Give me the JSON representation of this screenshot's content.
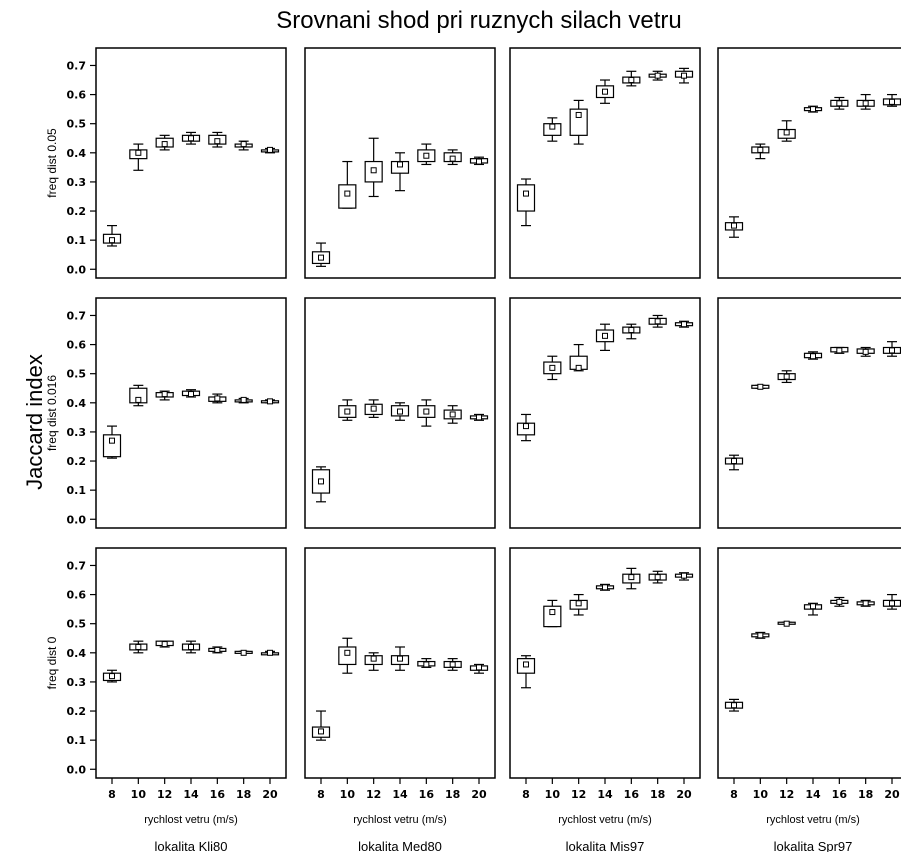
{
  "chart_data": {
    "type": "box",
    "title": "Srovnani shod pri ruznych silach vetru",
    "ylabel": "Jaccard index",
    "row_labels": [
      "freq dist 0.05",
      "freq dist 0.016",
      "freq dist 0"
    ],
    "column_xlabel": "rychlost vetru (m/s)",
    "column_labels": [
      "lokalita Kli80",
      "lokalita Med80",
      "lokalita Mis97",
      "lokalita Spr97"
    ],
    "categories": [
      "8",
      "10",
      "12",
      "14",
      "16",
      "18",
      "20"
    ],
    "y_ticks": [
      "0.0",
      "0.1",
      "0.2",
      "0.3",
      "0.4",
      "0.5",
      "0.6",
      "0.7"
    ],
    "ylim": [
      -0.03,
      0.76
    ],
    "panels": [
      [
        [
          [
            0.08,
            0.09,
            0.1,
            0.12,
            0.15
          ],
          [
            0.34,
            0.38,
            0.4,
            0.41,
            0.43
          ],
          [
            0.41,
            0.42,
            0.43,
            0.45,
            0.46
          ],
          [
            0.43,
            0.44,
            0.45,
            0.46,
            0.47
          ],
          [
            0.42,
            0.43,
            0.44,
            0.46,
            0.47
          ],
          [
            0.41,
            0.42,
            0.43,
            0.43,
            0.44
          ],
          [
            0.4,
            0.405,
            0.41,
            0.41,
            0.415
          ]
        ],
        [
          [
            0.01,
            0.02,
            0.04,
            0.06,
            0.09
          ],
          [
            0.21,
            0.21,
            0.26,
            0.29,
            0.37
          ],
          [
            0.25,
            0.3,
            0.34,
            0.37,
            0.45
          ],
          [
            0.27,
            0.33,
            0.36,
            0.37,
            0.4
          ],
          [
            0.36,
            0.37,
            0.39,
            0.41,
            0.43
          ],
          [
            0.36,
            0.37,
            0.38,
            0.4,
            0.41
          ],
          [
            0.36,
            0.365,
            0.37,
            0.38,
            0.385
          ]
        ],
        [
          [
            0.15,
            0.2,
            0.26,
            0.29,
            0.31
          ],
          [
            0.44,
            0.46,
            0.49,
            0.5,
            0.52
          ],
          [
            0.43,
            0.46,
            0.53,
            0.55,
            0.58
          ],
          [
            0.57,
            0.59,
            0.61,
            0.63,
            0.65
          ],
          [
            0.63,
            0.64,
            0.65,
            0.66,
            0.68
          ],
          [
            0.65,
            0.66,
            0.665,
            0.67,
            0.68
          ],
          [
            0.64,
            0.66,
            0.665,
            0.68,
            0.69
          ]
        ],
        [
          [
            0.11,
            0.135,
            0.15,
            0.16,
            0.18
          ],
          [
            0.38,
            0.4,
            0.41,
            0.42,
            0.43
          ],
          [
            0.44,
            0.45,
            0.47,
            0.48,
            0.51
          ],
          [
            0.54,
            0.545,
            0.55,
            0.555,
            0.56
          ],
          [
            0.55,
            0.56,
            0.57,
            0.58,
            0.59
          ],
          [
            0.55,
            0.56,
            0.57,
            0.58,
            0.6
          ],
          [
            0.56,
            0.565,
            0.575,
            0.585,
            0.6
          ]
        ]
      ],
      [
        [
          [
            0.21,
            0.215,
            0.27,
            0.29,
            0.32
          ],
          [
            0.39,
            0.4,
            0.41,
            0.45,
            0.46
          ],
          [
            0.41,
            0.42,
            0.43,
            0.435,
            0.44
          ],
          [
            0.42,
            0.425,
            0.43,
            0.44,
            0.445
          ],
          [
            0.4,
            0.405,
            0.415,
            0.42,
            0.43
          ],
          [
            0.4,
            0.405,
            0.41,
            0.41,
            0.415
          ],
          [
            0.4,
            0.402,
            0.405,
            0.407,
            0.41
          ]
        ],
        [
          [
            0.06,
            0.09,
            0.13,
            0.17,
            0.18
          ],
          [
            0.34,
            0.35,
            0.37,
            0.39,
            0.41
          ],
          [
            0.35,
            0.36,
            0.38,
            0.395,
            0.41
          ],
          [
            0.34,
            0.355,
            0.37,
            0.39,
            0.4
          ],
          [
            0.32,
            0.35,
            0.37,
            0.39,
            0.41
          ],
          [
            0.33,
            0.345,
            0.36,
            0.375,
            0.39
          ],
          [
            0.34,
            0.345,
            0.35,
            0.355,
            0.36
          ]
        ],
        [
          [
            0.27,
            0.29,
            0.32,
            0.33,
            0.36
          ],
          [
            0.48,
            0.5,
            0.52,
            0.54,
            0.56
          ],
          [
            0.51,
            0.515,
            0.52,
            0.56,
            0.6
          ],
          [
            0.58,
            0.61,
            0.63,
            0.65,
            0.67
          ],
          [
            0.62,
            0.64,
            0.65,
            0.66,
            0.67
          ],
          [
            0.66,
            0.67,
            0.68,
            0.69,
            0.7
          ],
          [
            0.66,
            0.665,
            0.67,
            0.675,
            0.68
          ]
        ],
        [
          [
            0.17,
            0.19,
            0.2,
            0.21,
            0.22
          ],
          [
            0.45,
            0.45,
            0.455,
            0.46,
            0.46
          ],
          [
            0.47,
            0.48,
            0.49,
            0.5,
            0.51
          ],
          [
            0.55,
            0.555,
            0.56,
            0.57,
            0.575
          ],
          [
            0.57,
            0.575,
            0.58,
            0.59,
            0.59
          ],
          [
            0.56,
            0.57,
            0.575,
            0.585,
            0.59
          ],
          [
            0.56,
            0.57,
            0.58,
            0.59,
            0.61
          ]
        ]
      ],
      [
        [
          [
            0.3,
            0.305,
            0.32,
            0.33,
            0.34
          ],
          [
            0.4,
            0.41,
            0.42,
            0.43,
            0.44
          ],
          [
            0.42,
            0.425,
            0.43,
            0.44,
            0.44
          ],
          [
            0.4,
            0.41,
            0.42,
            0.43,
            0.44
          ],
          [
            0.4,
            0.405,
            0.41,
            0.415,
            0.42
          ],
          [
            0.4,
            0.4,
            0.4,
            0.405,
            0.405
          ],
          [
            0.4,
            0.4,
            0.4,
            0.4,
            0.405
          ]
        ],
        [
          [
            0.1,
            0.11,
            0.13,
            0.145,
            0.2
          ],
          [
            0.33,
            0.36,
            0.4,
            0.42,
            0.45
          ],
          [
            0.34,
            0.36,
            0.38,
            0.39,
            0.4
          ],
          [
            0.34,
            0.36,
            0.38,
            0.39,
            0.42
          ],
          [
            0.35,
            0.355,
            0.36,
            0.37,
            0.38
          ],
          [
            0.34,
            0.35,
            0.36,
            0.37,
            0.38
          ],
          [
            0.33,
            0.34,
            0.35,
            0.355,
            0.36
          ]
        ],
        [
          [
            0.28,
            0.33,
            0.36,
            0.38,
            0.39
          ],
          [
            0.49,
            0.49,
            0.54,
            0.56,
            0.58
          ],
          [
            0.53,
            0.55,
            0.57,
            0.58,
            0.6
          ],
          [
            0.615,
            0.62,
            0.625,
            0.63,
            0.635
          ],
          [
            0.62,
            0.64,
            0.66,
            0.67,
            0.69
          ],
          [
            0.64,
            0.65,
            0.66,
            0.67,
            0.68
          ],
          [
            0.65,
            0.66,
            0.665,
            0.67,
            0.675
          ]
        ],
        [
          [
            0.2,
            0.21,
            0.22,
            0.23,
            0.24
          ],
          [
            0.45,
            0.455,
            0.46,
            0.465,
            0.47
          ],
          [
            0.5,
            0.5,
            0.5,
            0.505,
            0.505
          ],
          [
            0.53,
            0.55,
            0.56,
            0.565,
            0.57
          ],
          [
            0.56,
            0.57,
            0.575,
            0.58,
            0.59
          ],
          [
            0.56,
            0.565,
            0.57,
            0.575,
            0.58
          ],
          [
            0.55,
            0.56,
            0.57,
            0.58,
            0.6
          ]
        ]
      ]
    ]
  }
}
